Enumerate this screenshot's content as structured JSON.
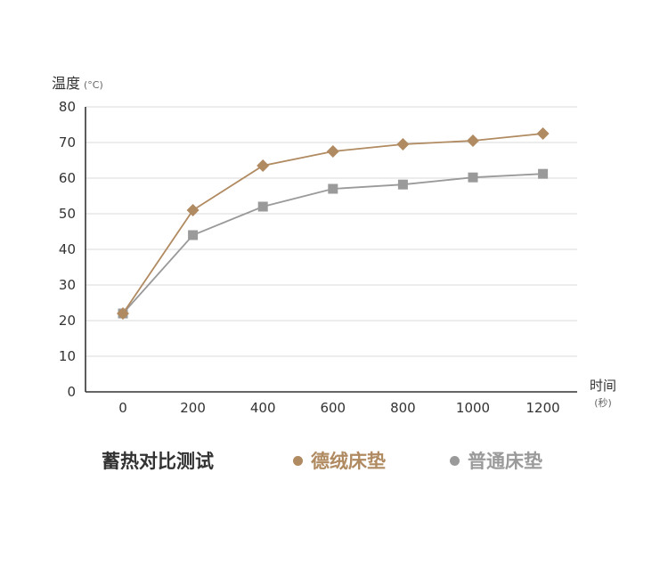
{
  "chart_data": {
    "type": "line",
    "title": "蓄热对比测试",
    "ylabel": "温度",
    "ylabel_unit": "(°C)",
    "xlabel": "时间",
    "xlabel_unit": "(秒)",
    "ylim": [
      0,
      80
    ],
    "yticks": [
      0,
      10,
      20,
      30,
      40,
      50,
      60,
      70,
      80
    ],
    "x": [
      0,
      200,
      400,
      600,
      800,
      1000,
      1200
    ],
    "grid": true,
    "legend_position": "bottom",
    "series": [
      {
        "name": "德绒床垫",
        "marker": "diamond",
        "color": "#b08a60",
        "values": [
          22,
          51,
          63.5,
          67.5,
          69.5,
          70.5,
          72.5
        ]
      },
      {
        "name": "普通床垫",
        "marker": "square",
        "color": "#9a9a9a",
        "values": [
          22,
          44,
          52,
          57,
          58.2,
          60.2,
          61.2
        ]
      }
    ]
  }
}
